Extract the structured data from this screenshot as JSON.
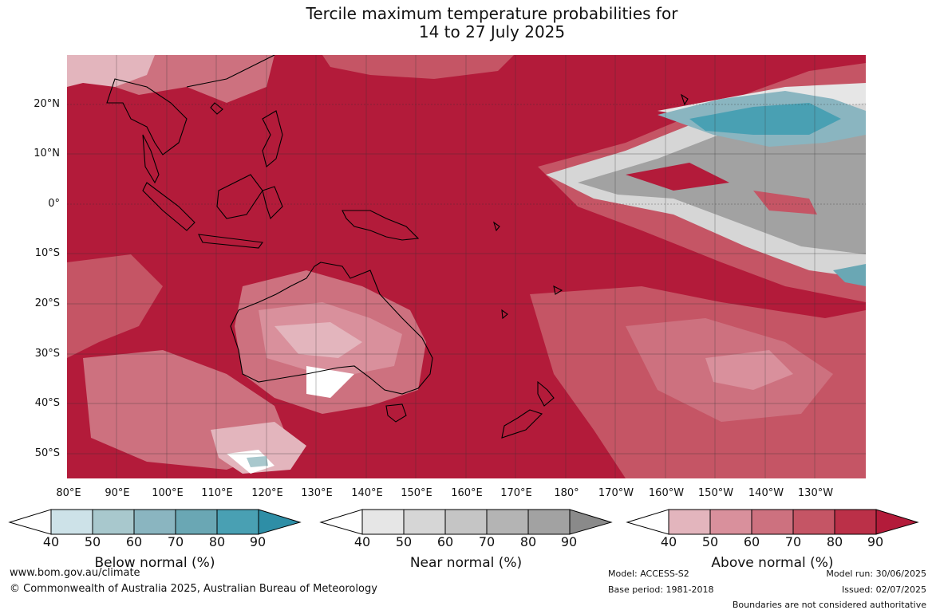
{
  "title": {
    "line1": "Tercile maximum temperature probabilities for",
    "line2": "14 to 27 July 2025"
  },
  "lat_labels": [
    "20°N",
    "10°N",
    "0°",
    "10°S",
    "20°S",
    "30°S",
    "40°S",
    "50°S"
  ],
  "lon_labels": [
    "80°E",
    "90°E",
    "100°E",
    "110°E",
    "120°E",
    "130°E",
    "140°E",
    "150°E",
    "160°E",
    "170°E",
    "180°",
    "170°W",
    "160°W",
    "150°W",
    "140°W",
    "130°W"
  ],
  "colorbars": [
    {
      "label": "Below normal (%)",
      "ticks": [
        "40",
        "50",
        "60",
        "70",
        "80",
        "90"
      ],
      "colors": [
        "#cde2e8",
        "#a8c8cd",
        "#8ab5c0",
        "#6aa7b4",
        "#49a0b3",
        "#2e8ea6"
      ]
    },
    {
      "label": "Near normal (%)",
      "ticks": [
        "40",
        "50",
        "60",
        "70",
        "80",
        "90"
      ],
      "colors": [
        "#e6e6e6",
        "#d6d6d6",
        "#c5c5c5",
        "#b4b4b4",
        "#a2a2a2",
        "#8a8a8a"
      ]
    },
    {
      "label": "Above normal (%)",
      "ticks": [
        "40",
        "50",
        "60",
        "70",
        "80",
        "90"
      ],
      "colors": [
        "#e3b5bd",
        "#d9909c",
        "#cd717f",
        "#c55565",
        "#bb3048",
        "#b31b3a"
      ]
    }
  ],
  "footer": {
    "website": "www.bom.gov.au/climate",
    "copyright": "© Commonwealth of Australia 2025, Australian Bureau of Meteorology",
    "model": "Model: ACCESS-S2",
    "base_period": "Base period: 1981-2018",
    "model_run": "Model run: 30/06/2025",
    "issued": "Issued: 02/07/2025",
    "disclaimer": "Boundaries are not considered authoritative"
  }
}
